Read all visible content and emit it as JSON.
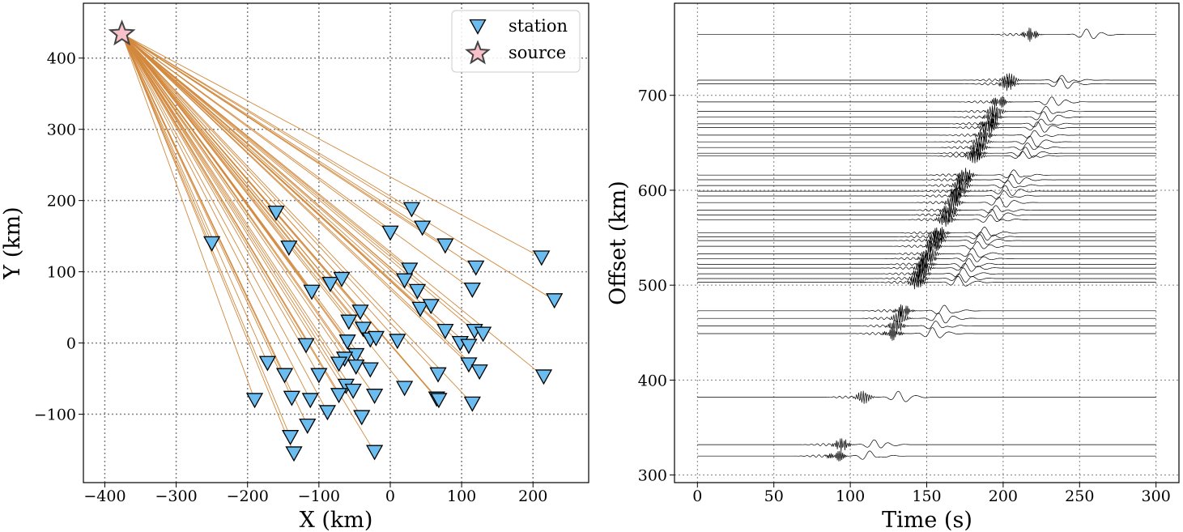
{
  "chart_data": [
    {
      "type": "scatter",
      "xlabel": "X (km)",
      "ylabel": "Y (km)",
      "xlim": [
        -430,
        278
      ],
      "ylim": [
        -196,
        477
      ],
      "xticks": [
        -400,
        -300,
        -200,
        -100,
        0,
        100,
        200
      ],
      "yticks": [
        -100,
        0,
        100,
        200,
        300,
        400
      ],
      "xtick_labels": [
        "−400",
        "−300",
        "−200",
        "−100",
        "0",
        "100",
        "200"
      ],
      "ytick_labels": [
        "−100",
        "0",
        "100",
        "200",
        "300",
        "400"
      ],
      "grid": true,
      "legend_position": "top-right",
      "legend": [
        {
          "label": "station",
          "marker": "triangle-down",
          "color": "#6bbdf0"
        },
        {
          "label": "source",
          "marker": "star",
          "color": "#f8c0c8"
        }
      ],
      "source": {
        "name": "source",
        "x": -376,
        "y": 434
      },
      "station_color": "#6bbdf0",
      "ray_color": "#d2893d",
      "stations": [
        [
          -250,
          140
        ],
        [
          -160,
          183
        ],
        [
          -142,
          134
        ],
        [
          -110,
          72
        ],
        [
          -84,
          83
        ],
        [
          -68,
          90
        ],
        [
          -118,
          -3
        ],
        [
          -60,
          2
        ],
        [
          -48,
          -17
        ],
        [
          -58,
          30
        ],
        [
          -42,
          44
        ],
        [
          -38,
          20
        ],
        [
          -28,
          5
        ],
        [
          -20,
          7
        ],
        [
          -64,
          -22
        ],
        [
          -72,
          -29
        ],
        [
          -48,
          -33
        ],
        [
          -100,
          -45
        ],
        [
          -148,
          -45
        ],
        [
          -172,
          -28
        ],
        [
          -62,
          -60
        ],
        [
          -52,
          -67
        ],
        [
          -72,
          -73
        ],
        [
          -28,
          -37
        ],
        [
          -138,
          -77
        ],
        [
          -112,
          -80
        ],
        [
          -190,
          -80
        ],
        [
          -88,
          -97
        ],
        [
          -116,
          -116
        ],
        [
          -140,
          -132
        ],
        [
          -135,
          -155
        ],
        [
          -40,
          -104
        ],
        [
          -22,
          -74
        ],
        [
          -22,
          -153
        ],
        [
          30,
          188
        ],
        [
          45,
          162
        ],
        [
          0,
          155
        ],
        [
          27,
          103
        ],
        [
          20,
          88
        ],
        [
          38,
          73
        ],
        [
          42,
          48
        ],
        [
          57,
          52
        ],
        [
          77,
          137
        ],
        [
          120,
          106
        ],
        [
          115,
          75
        ],
        [
          77,
          17
        ],
        [
          98,
          0
        ],
        [
          110,
          -4
        ],
        [
          118,
          17
        ],
        [
          130,
          13
        ],
        [
          110,
          -30
        ],
        [
          125,
          -40
        ],
        [
          67,
          -44
        ],
        [
          65,
          -78
        ],
        [
          68,
          -80
        ],
        [
          20,
          -63
        ],
        [
          10,
          3
        ],
        [
          115,
          -85
        ],
        [
          212,
          120
        ],
        [
          230,
          60
        ],
        [
          215,
          -47
        ]
      ]
    },
    {
      "type": "line",
      "title": "",
      "xlabel": "Time (s)",
      "ylabel": "Offset (km)",
      "xlim": [
        -15,
        315
      ],
      "ylim": [
        292,
        797
      ],
      "xticks": [
        0,
        50,
        100,
        150,
        200,
        250,
        300
      ],
      "yticks": [
        300,
        400,
        500,
        600,
        700
      ],
      "grid": true,
      "trace_color": "#000000",
      "trace_amplitude_km": 7,
      "apparent_velocity_km_s": 3.5,
      "trace_offsets_km": [
        320,
        332,
        382,
        449,
        457,
        465,
        473,
        503,
        507,
        512,
        518,
        522,
        528,
        533,
        541,
        547,
        551,
        555,
        569,
        574,
        579,
        587,
        594,
        599,
        605,
        611,
        616,
        636,
        639,
        645,
        651,
        658,
        666,
        670,
        677,
        683,
        693,
        712,
        716,
        764
      ]
    }
  ]
}
